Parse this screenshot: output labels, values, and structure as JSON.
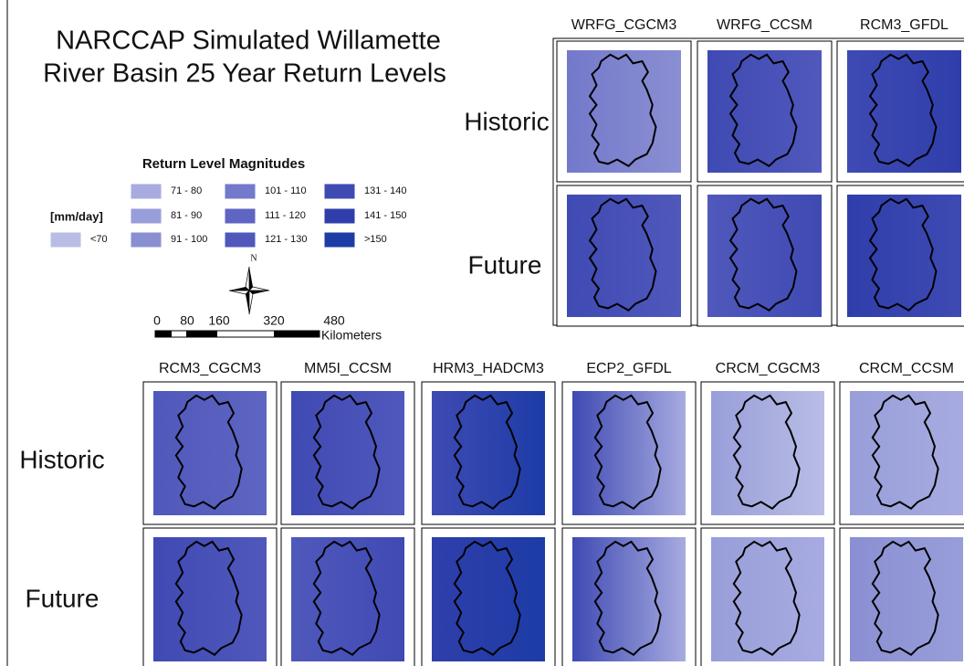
{
  "title": [
    "NARCCAP Simulated Willamette",
    "River Basin 25 Year Return Levels"
  ],
  "legend": {
    "title": "Return Level Magnitudes",
    "unit": "[mm/day]",
    "items": [
      {
        "label": "<70",
        "color": "#b9bde6"
      },
      {
        "label": "71 - 80",
        "color": "#a7abe0"
      },
      {
        "label": "81 - 90",
        "color": "#989ed9"
      },
      {
        "label": "91 - 100",
        "color": "#8a8fd2"
      },
      {
        "label": "101 - 110",
        "color": "#7379cb"
      },
      {
        "label": "111 - 120",
        "color": "#5e65c2"
      },
      {
        "label": "121 - 130",
        "color": "#5058bb"
      },
      {
        "label": "131 - 140",
        "color": "#3f4ab3"
      },
      {
        "label": "141 - 150",
        "color": "#2f3eab"
      },
      {
        "label": ">150",
        "color": "#1d3ca6"
      }
    ]
  },
  "north": "N",
  "scale_bar": {
    "labels": [
      "0",
      "80",
      "160",
      "320",
      "480"
    ],
    "unit": "Kilometers"
  },
  "panels": [
    {
      "models": [
        "WRFG_CGCM3",
        "WRFG_CCSM",
        "RCM3_GFDL"
      ],
      "rows": [
        "Historic",
        "Future"
      ]
    },
    {
      "models": [
        "RCM3_CGCM3",
        "MM5I_CCSM",
        "HRM3_HADCM3",
        "ECP2_GFDL",
        "CRCM_CGCM3",
        "CRCM_CCSM"
      ],
      "rows": [
        "Historic",
        "Future"
      ]
    }
  ]
}
